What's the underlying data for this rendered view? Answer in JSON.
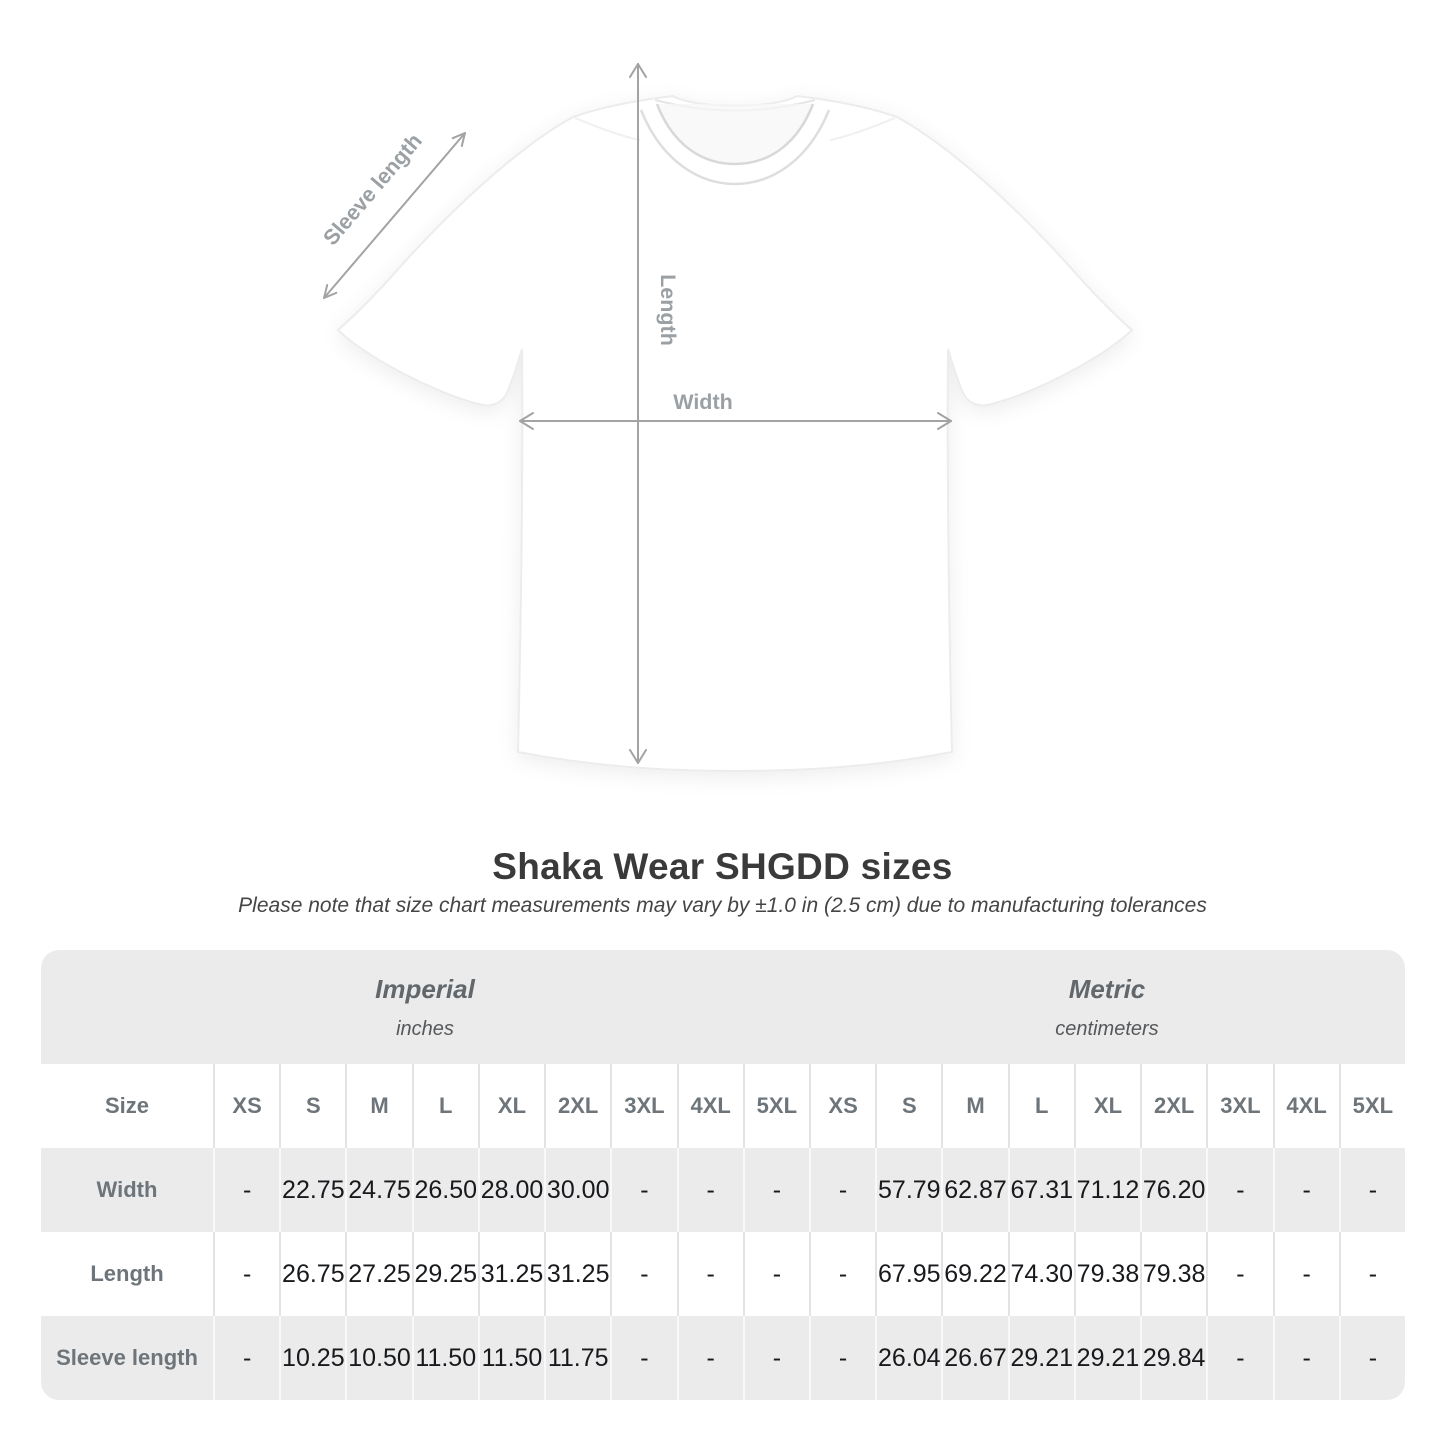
{
  "header": {
    "title": "Shaka Wear SHGDD sizes",
    "subtitle": "Please note that size chart measurements may vary by ±1.0 in (2.5 cm) due to manufacturing tolerances"
  },
  "diagram": {
    "labels": {
      "length": "Length",
      "width": "Width",
      "sleeve_length": "Sleeve length"
    }
  },
  "colors": {
    "table_band_gray": "#ebebeb",
    "value_text": "#17191c",
    "label_text": "#6e757a",
    "diagram_label_gray": "#9aa0a4",
    "arrow_gray": "#a3a3a3",
    "title_text": "#3a3a3a"
  },
  "chart_data": {
    "type": "table",
    "title": "Shaka Wear SHGDD sizes",
    "note": "Please note that size chart measurements may vary by ±1.0 in (2.5 cm) due to manufacturing tolerances",
    "corner_label": "Size",
    "unit_groups": [
      {
        "label": "Imperial",
        "sublabel": "inches"
      },
      {
        "label": "Metric",
        "sublabel": "centimeters"
      }
    ],
    "size_columns": [
      "XS",
      "S",
      "M",
      "L",
      "XL",
      "2XL",
      "3XL",
      "4XL",
      "5XL"
    ],
    "rows": [
      {
        "label": "Width",
        "imperial": [
          "-",
          "22.75",
          "24.75",
          "26.50",
          "28.00",
          "30.00",
          "-",
          "-",
          "-"
        ],
        "metric": [
          "-",
          "57.79",
          "62.87",
          "67.31",
          "71.12",
          "76.20",
          "-",
          "-",
          "-"
        ]
      },
      {
        "label": "Length",
        "imperial": [
          "-",
          "26.75",
          "27.25",
          "29.25",
          "31.25",
          "31.25",
          "-",
          "-",
          "-"
        ],
        "metric": [
          "-",
          "67.95",
          "69.22",
          "74.30",
          "79.38",
          "79.38",
          "-",
          "-",
          "-"
        ]
      },
      {
        "label": "Sleeve length",
        "imperial": [
          "-",
          "10.25",
          "10.50",
          "11.50",
          "11.50",
          "11.75",
          "-",
          "-",
          "-"
        ],
        "metric": [
          "-",
          "26.04",
          "26.67",
          "29.21",
          "29.21",
          "29.84",
          "-",
          "-",
          "-"
        ]
      }
    ]
  }
}
